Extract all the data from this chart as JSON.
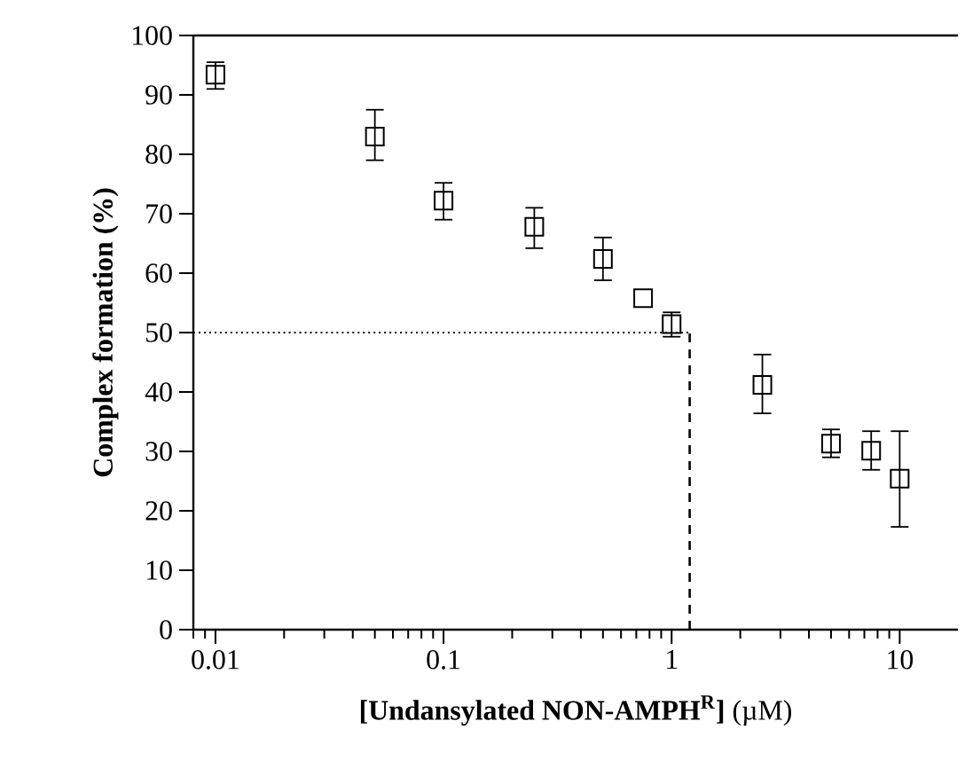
{
  "chart_data": {
    "type": "scatter",
    "xlabel": "**[Undansylated NON-AMPH$^{R}$]**    (µM)",
    "ylabel": "Complex formation  (%)",
    "x": [
      0.01,
      0.05,
      0.1,
      0.25,
      0.5,
      0.75,
      1.0,
      2.5,
      5,
      7.5,
      10
    ],
    "values": [
      93.4,
      83,
      72.2,
      67.8,
      62.4,
      55.8,
      51.4,
      41.2,
      31.3,
      30.1,
      25.4
    ],
    "errors": [
      [
        91,
        95.5
      ],
      [
        79,
        87.5
      ],
      [
        69,
        75.2
      ],
      [
        64.2,
        71
      ],
      [
        58.8,
        66
      ],
      null,
      [
        49.3,
        53.4
      ],
      [
        36.4,
        46.3
      ],
      [
        29,
        33.7
      ],
      [
        26.9,
        33.4
      ],
      [
        17.3,
        33.4
      ]
    ],
    "color": "#000000",
    "marker": "square",
    "log": "x",
    "xlim": [
      0.008,
      18
    ],
    "ylim": [
      0,
      100
    ],
    "xticks": [
      0.01,
      0.1,
      1,
      10
    ],
    "yticks": [
      0,
      10,
      20,
      30,
      40,
      50,
      60,
      70,
      80,
      90,
      100
    ],
    "ref_lines": [
      {
        "axis": "y",
        "value": 50,
        "line_style": "dotted"
      },
      {
        "axis": "x",
        "value": 1.2,
        "line_style": "dashed"
      }
    ]
  }
}
